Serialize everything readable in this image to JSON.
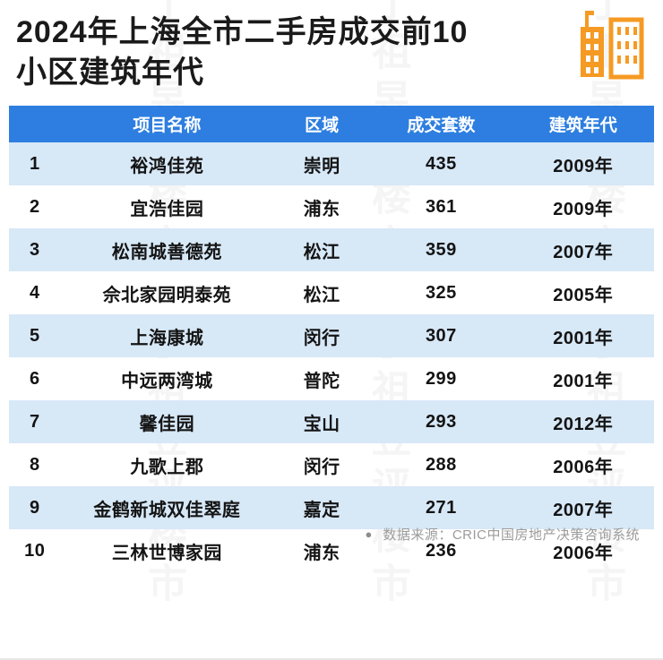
{
  "title": {
    "line1": "2024年上海全市二手房成交前10",
    "line2": "小区建筑年代",
    "full": "2024年上海全市二手房成交前10小区建筑年代"
  },
  "icon": {
    "name": "buildings-icon",
    "color": "#F59A23"
  },
  "chart_data": {
    "type": "table",
    "title": "2024年上海全市二手房成交前10小区建筑年代",
    "headers": [
      "项目名称",
      "区域",
      "成交套数",
      "建筑年代"
    ],
    "rank_header": "",
    "rows": [
      {
        "rank": "1",
        "name": "裕鸿佳苑",
        "district": "崇明",
        "count": "435",
        "year": "2009年"
      },
      {
        "rank": "2",
        "name": "宜浩佳园",
        "district": "浦东",
        "count": "361",
        "year": "2009年"
      },
      {
        "rank": "3",
        "name": "松南城善德苑",
        "district": "松江",
        "count": "359",
        "year": "2007年"
      },
      {
        "rank": "4",
        "name": "佘北家园明泰苑",
        "district": "松江",
        "count": "325",
        "year": "2005年"
      },
      {
        "rank": "5",
        "name": "上海康城",
        "district": "闵行",
        "count": "307",
        "year": "2001年"
      },
      {
        "rank": "6",
        "name": "中远两湾城",
        "district": "普陀",
        "count": "299",
        "year": "2001年"
      },
      {
        "rank": "7",
        "name": "馨佳园",
        "district": "宝山",
        "count": "293",
        "year": "2012年"
      },
      {
        "rank": "8",
        "name": "九歌上郡",
        "district": "闵行",
        "count": "288",
        "year": "2006年"
      },
      {
        "rank": "9",
        "name": "金鹤新城双佳翠庭",
        "district": "嘉定",
        "count": "271",
        "year": "2007年"
      },
      {
        "rank": "10",
        "name": "三林世博家园",
        "district": "浦东",
        "count": "236",
        "year": "2006年"
      }
    ],
    "source": "数据来源：CRIC中国房地产决策咨询系统"
  },
  "footer": {
    "bullet": "●",
    "source": "数据来源：CRIC中国房地产决策咨询系统"
  },
  "watermark": {
    "text": "丁祖昱评楼市"
  },
  "colors": {
    "header_bg": "#2D7EE0",
    "row_alt_bg": "#D7E8F7",
    "title_color": "#1A1A1A",
    "footer_color": "#9B9B9B",
    "icon_color": "#F59A23"
  }
}
